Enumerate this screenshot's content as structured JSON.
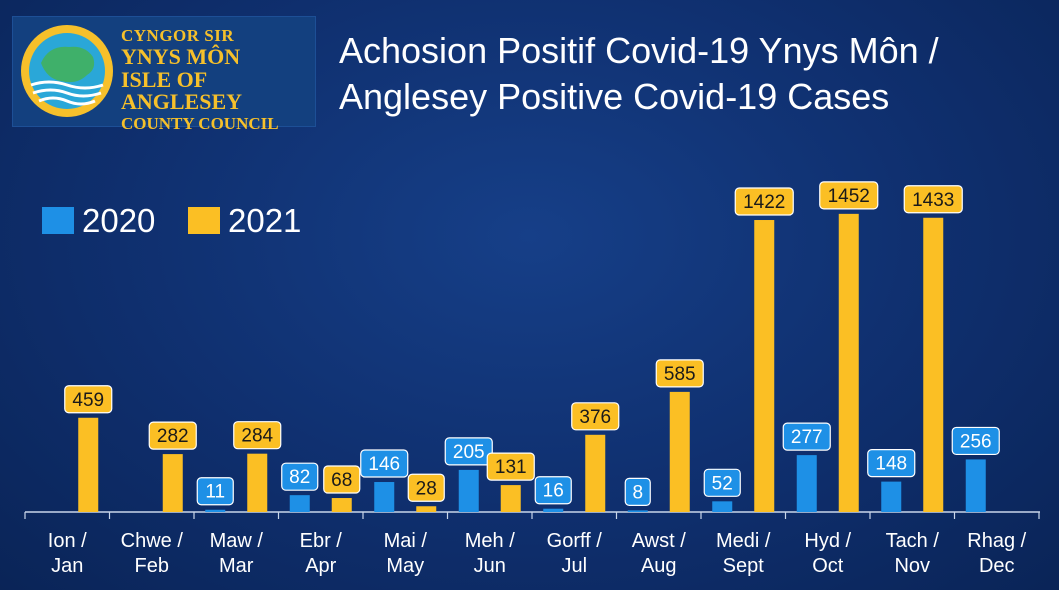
{
  "logo": {
    "line1": "CYNGOR SIR",
    "line2": "YNYS MÔN",
    "line3": "ISLE OF ANGLESEY",
    "line4": "COUNTY COUNCIL"
  },
  "title": "Achosion Positif Covid-19 Ynys Môn / Anglesey Positive Covid-19 Cases",
  "chart_data": {
    "type": "bar",
    "title": "Achosion Positif Covid-19 Ynys Môn / Anglesey Positive Covid-19 Cases",
    "xlabel": "",
    "ylabel": "",
    "ylim": [
      0,
      1500
    ],
    "grid": false,
    "legend_position": "top-left",
    "categories": [
      [
        "Ion /",
        "Jan"
      ],
      [
        "Chwe /",
        "Feb"
      ],
      [
        "Maw /",
        "Mar"
      ],
      [
        "Ebr /",
        "Apr"
      ],
      [
        "Mai /",
        "May"
      ],
      [
        "Meh /",
        "Jun"
      ],
      [
        "Gorff /",
        "Jul"
      ],
      [
        "Awst /",
        "Aug"
      ],
      [
        "Medi /",
        "Sept"
      ],
      [
        "Hyd /",
        "Oct"
      ],
      [
        "Tach /",
        "Nov"
      ],
      [
        "Rhag /",
        "Dec"
      ]
    ],
    "series": [
      {
        "name": "2020",
        "color": "#1e90e6",
        "values": [
          null,
          null,
          11,
          82,
          146,
          205,
          16,
          8,
          52,
          277,
          148,
          256
        ]
      },
      {
        "name": "2021",
        "color": "#fbbf24",
        "values": [
          459,
          282,
          284,
          68,
          28,
          131,
          376,
          585,
          1422,
          1452,
          1433,
          null
        ]
      }
    ]
  }
}
